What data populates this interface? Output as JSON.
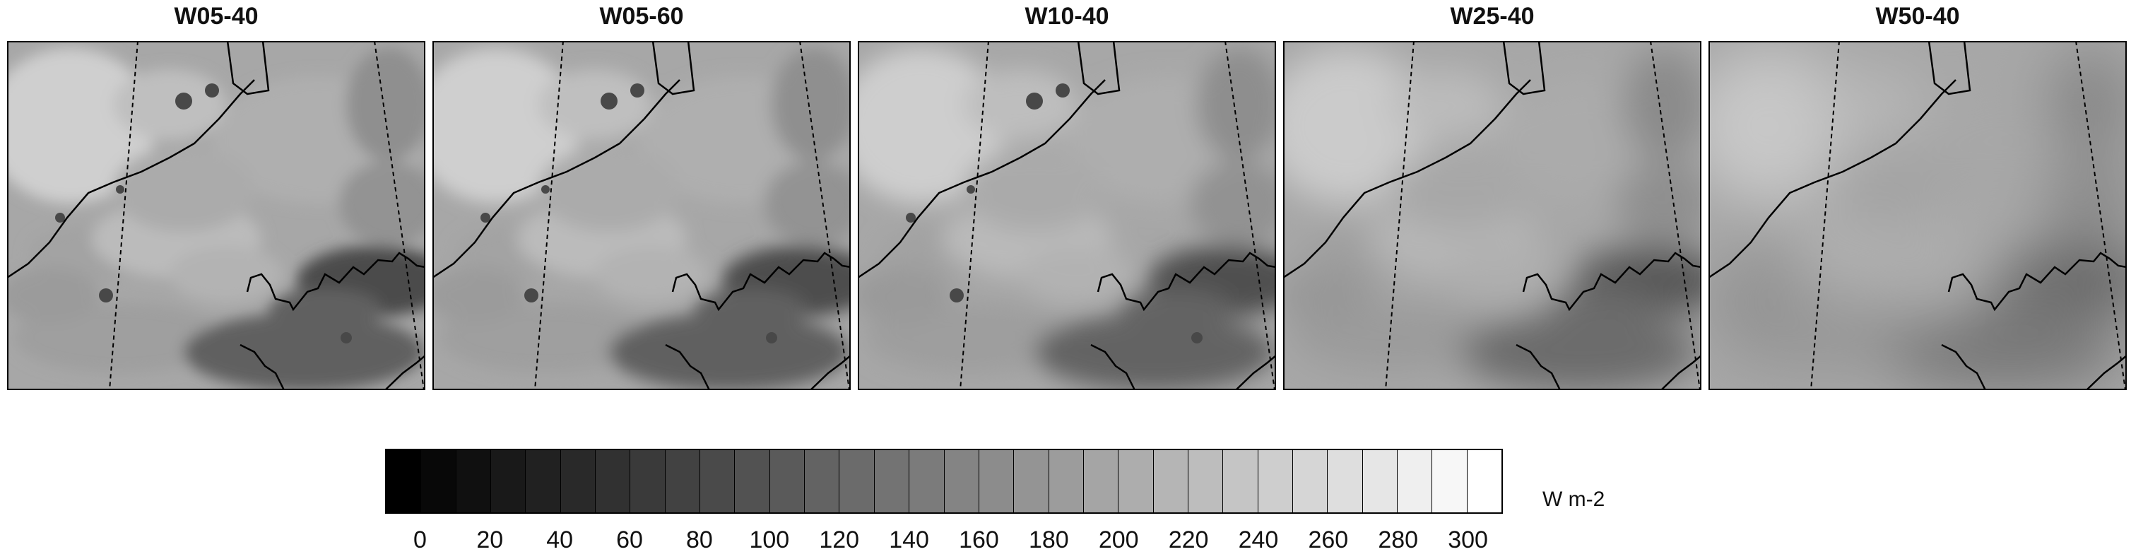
{
  "panels": [
    {
      "title": "W05-40",
      "smooth": 0
    },
    {
      "title": "W05-60",
      "smooth": 0.3
    },
    {
      "title": "W10-40",
      "smooth": 1
    },
    {
      "title": "W25-40",
      "smooth": 2.5
    },
    {
      "title": "W50-40",
      "smooth": 5
    }
  ],
  "colorbar": {
    "ticks": [
      "0",
      "20",
      "40",
      "60",
      "80",
      "100",
      "120",
      "140",
      "160",
      "180",
      "200",
      "220",
      "240",
      "260",
      "280",
      "300"
    ],
    "min": 0,
    "max": 320,
    "step": 10,
    "unit": "W m-2",
    "palette": "grayscale black-to-white"
  }
}
